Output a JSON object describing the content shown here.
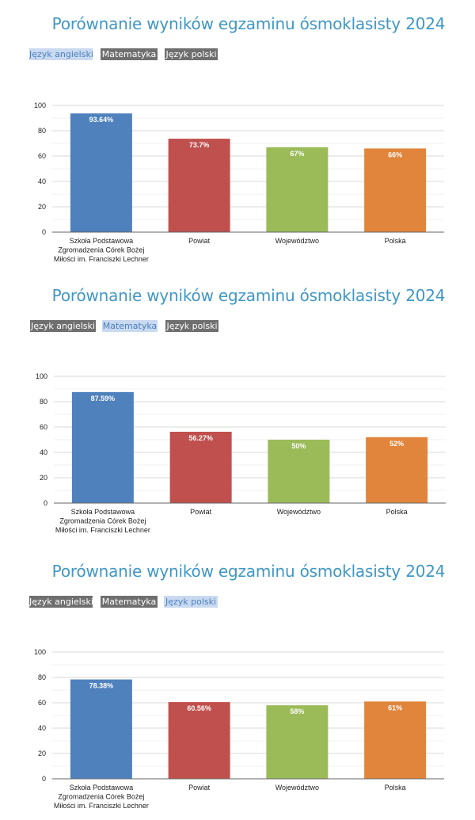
{
  "sections": [
    {
      "title": "Porównanie wyników egzaminu ósmoklasisty 2024",
      "tabs": [
        "Język angielski",
        "Matematyka",
        "Język polski"
      ],
      "active_tab": 0
    },
    {
      "title": "Porównanie wyników egzaminu ósmoklasisty 2024",
      "tabs": [
        "Język angielski",
        "Matematyka",
        "Język polski"
      ],
      "active_tab": 1
    },
    {
      "title": "Porównanie wyników egzaminu ósmoklasisty 2024",
      "tabs": [
        "Język angielski",
        "Matematyka",
        "Język polski"
      ],
      "active_tab": 2
    }
  ],
  "colors": [
    "#4f81bd",
    "#c0504d",
    "#9bbb59",
    "#e0853b"
  ],
  "chart_data": [
    {
      "type": "bar",
      "title": "Porównanie wyników egzaminu ósmoklasisty 2024",
      "subject": "Język angielski",
      "categories": [
        [
          "Szkoła Podstawowa",
          "Zgromadzenia Córek Bożej",
          "Miłości im. Franciszki Lechner"
        ],
        [
          "Powiat"
        ],
        [
          "Województwo"
        ],
        [
          "Polska"
        ]
      ],
      "values": [
        93.64,
        73.7,
        67,
        66
      ],
      "value_labels": [
        "93.64%",
        "73.7%",
        "67%",
        "66%"
      ],
      "ylim": [
        0,
        100
      ],
      "yticks": [
        0,
        20,
        40,
        60,
        80,
        100
      ]
    },
    {
      "type": "bar",
      "title": "Porównanie wyników egzaminu ósmoklasisty 2024",
      "subject": "Matematyka",
      "categories": [
        [
          "Szkoła Podstawowa",
          "Zgromadzenia Córek Bożej",
          "Miłości im. Franciszki Lechner"
        ],
        [
          "Powiat"
        ],
        [
          "Województwo"
        ],
        [
          "Polska"
        ]
      ],
      "values": [
        87.59,
        56.27,
        50,
        52
      ],
      "value_labels": [
        "87.59%",
        "56.27%",
        "50%",
        "52%"
      ],
      "ylim": [
        0,
        100
      ],
      "yticks": [
        0,
        20,
        40,
        60,
        80,
        100
      ]
    },
    {
      "type": "bar",
      "title": "Porównanie wyników egzaminu ósmoklasisty 2024",
      "subject": "Język polski",
      "categories": [
        [
          "Szkoła Podstawowa",
          "Zgromadzenia Córek Bożej",
          "Miłości im. Franciszki Lechner"
        ],
        [
          "Powiat"
        ],
        [
          "Województwo"
        ],
        [
          "Polska"
        ]
      ],
      "values": [
        78.38,
        60.56,
        58,
        61
      ],
      "value_labels": [
        "78.38%",
        "60.56%",
        "58%",
        "61%"
      ],
      "ylim": [
        0,
        100
      ],
      "yticks": [
        0,
        20,
        40,
        60,
        80,
        100
      ]
    }
  ]
}
